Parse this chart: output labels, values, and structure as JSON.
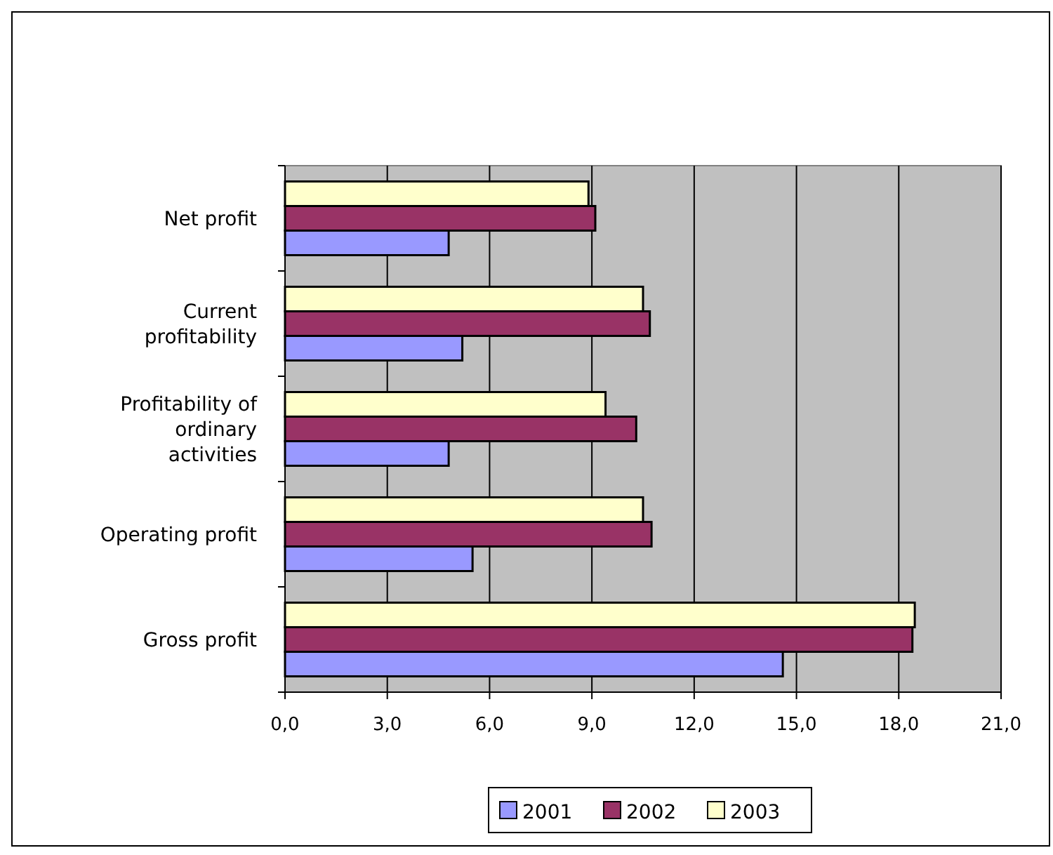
{
  "chart_data": {
    "type": "bar",
    "orientation": "horizontal",
    "categories": [
      "Net profit",
      "Current profitability",
      "Profitability of ordinary activities",
      "Operating profit",
      "Gross profit"
    ],
    "series": [
      {
        "name": "2001",
        "color": "#9999ff",
        "values": [
          4.8,
          5.2,
          4.8,
          5.5,
          14.6
        ]
      },
      {
        "name": "2002",
        "color": "#993366",
        "values": [
          9.1,
          10.7,
          10.3,
          10.75,
          18.4
        ]
      },
      {
        "name": "2003",
        "color": "#ffffcc",
        "values": [
          8.9,
          10.5,
          9.4,
          10.5,
          18.47
        ]
      }
    ],
    "xlim": [
      0,
      21
    ],
    "xticks": [
      {
        "value": 0,
        "label": "0,0"
      },
      {
        "value": 3,
        "label": "3,0"
      },
      {
        "value": 6,
        "label": "6,0"
      },
      {
        "value": 9,
        "label": "9,0"
      },
      {
        "value": 12,
        "label": "12,0"
      },
      {
        "value": 15,
        "label": "15,0"
      },
      {
        "value": 18,
        "label": "18,0"
      },
      {
        "value": 21,
        "label": "21,0"
      }
    ],
    "grid": "x",
    "legend": "bottom"
  }
}
